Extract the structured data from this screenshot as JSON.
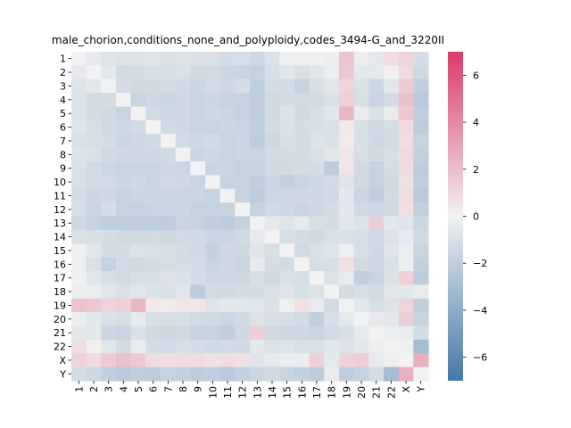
{
  "chart_data": {
    "type": "heatmap",
    "title": "male_chorion,conditions_none_and_polyploidy,codes_3494-G_and_3220II",
    "xlabel": "",
    "ylabel": "",
    "labels": [
      "1",
      "2",
      "3",
      "4",
      "5",
      "6",
      "7",
      "8",
      "9",
      "10",
      "11",
      "12",
      "13",
      "14",
      "15",
      "16",
      "17",
      "18",
      "19",
      "20",
      "21",
      "22",
      "X",
      "Y"
    ],
    "vmin": -7,
    "vmax": 7,
    "colorbar_ticks": [
      -6,
      -4,
      -2,
      0,
      2,
      4,
      6
    ],
    "colors": {
      "negative": "#4478a8",
      "center": "#f2f2f2",
      "positive": "#da3b6a"
    },
    "values": [
      [
        0,
        -0.5,
        -0.8,
        -0.9,
        -0.9,
        -0.8,
        -1.0,
        -0.9,
        -1.0,
        -1.0,
        -1.2,
        -1.1,
        -1.5,
        -1.0,
        -0.2,
        -0.2,
        -0.1,
        -0.3,
        1.8,
        -0.3,
        -0.6,
        0.8,
        1.2,
        -1.2
      ],
      [
        -0.5,
        0,
        -0.6,
        -1.3,
        -1.2,
        -1.1,
        -1.1,
        -1.0,
        -1.3,
        -1.3,
        -1.6,
        -1.7,
        -1.8,
        -1.1,
        -0.7,
        -1.0,
        -0.7,
        -0.3,
        1.6,
        -0.6,
        -0.6,
        0.1,
        0.9,
        -1.5
      ],
      [
        -0.8,
        -0.6,
        0,
        -1.2,
        -1.4,
        -1.4,
        -1.2,
        -1.4,
        -1.6,
        -1.3,
        -1.5,
        -1.2,
        -2.0,
        -1.2,
        -1.2,
        -1.8,
        -1.1,
        -0.7,
        1.2,
        -1.0,
        -1.6,
        -0.7,
        1.5,
        -2.0
      ],
      [
        -0.9,
        -1.3,
        -1.2,
        0,
        -1.7,
        -1.5,
        -1.6,
        -1.5,
        -1.7,
        -1.6,
        -1.8,
        -1.8,
        -2.0,
        -1.4,
        -1.2,
        -1.3,
        -1.3,
        -1.0,
        1.3,
        -1.1,
        -1.7,
        -1.3,
        1.9,
        -2.3
      ],
      [
        -0.9,
        -1.2,
        -1.4,
        -1.7,
        0,
        -1.3,
        -1.5,
        -1.5,
        -1.7,
        -1.5,
        -1.6,
        -1.8,
        -2.0,
        -1.4,
        -0.9,
        -1.4,
        -1.1,
        -0.7,
        2.3,
        -0.4,
        -1.0,
        -0.4,
        1.6,
        -2.0
      ],
      [
        -0.8,
        -1.1,
        -1.4,
        -1.5,
        -1.3,
        0,
        -1.4,
        -1.5,
        -1.7,
        -1.7,
        -1.6,
        -1.7,
        -2.0,
        -1.3,
        -1.0,
        -1.2,
        -1.1,
        -1.0,
        0.4,
        -1.1,
        -1.4,
        -1.2,
        0.9,
        -2.1
      ],
      [
        -1.0,
        -1.1,
        -1.2,
        -1.6,
        -1.5,
        -1.4,
        0,
        -1.3,
        -1.5,
        -1.4,
        -1.7,
        -1.6,
        -2.1,
        -1.5,
        -1.1,
        -1.2,
        -0.9,
        -1.0,
        0.3,
        -1.1,
        -1.5,
        -1.2,
        0.8,
        -1.8
      ],
      [
        -0.9,
        -1.0,
        -1.4,
        -1.5,
        -1.5,
        -1.5,
        -1.3,
        0,
        -1.6,
        -1.5,
        -1.7,
        -1.6,
        -1.7,
        -1.3,
        -1.2,
        -1.2,
        -1.0,
        -0.7,
        0.5,
        -1.1,
        -1.4,
        -1.1,
        0.9,
        -1.9
      ],
      [
        -1.0,
        -1.3,
        -1.6,
        -1.7,
        -1.7,
        -1.7,
        -1.5,
        -1.6,
        0,
        -1.7,
        -1.6,
        -1.8,
        -1.8,
        -1.4,
        -1.4,
        -1.2,
        -1.2,
        -2.1,
        0.5,
        -1.3,
        -1.8,
        -1.2,
        0.9,
        -2.1
      ],
      [
        -1.0,
        -1.3,
        -1.3,
        -1.6,
        -1.5,
        -1.7,
        -1.4,
        -1.5,
        -1.7,
        0,
        -1.8,
        -1.8,
        -2.0,
        -1.6,
        -1.9,
        -1.7,
        -1.5,
        -1.3,
        -0.8,
        -1.4,
        -1.8,
        -1.4,
        0.7,
        -2.0
      ],
      [
        -1.2,
        -1.6,
        -1.5,
        -1.8,
        -1.6,
        -1.6,
        -1.7,
        -1.7,
        -1.6,
        -1.8,
        0,
        -1.8,
        -2.1,
        -1.6,
        -1.5,
        -1.5,
        -1.5,
        -1.4,
        -0.6,
        -1.6,
        -2.0,
        -1.3,
        0.8,
        -2.3
      ],
      [
        -1.1,
        -1.7,
        -1.2,
        -1.8,
        -1.8,
        -1.7,
        -1.6,
        -1.6,
        -1.8,
        -1.8,
        -1.8,
        0,
        -1.8,
        -1.4,
        -1.5,
        -1.7,
        -1.5,
        -1.2,
        -0.6,
        -1.4,
        -1.5,
        -1.4,
        0.7,
        -1.9
      ],
      [
        -1.5,
        -1.8,
        -2.0,
        -2.0,
        -2.0,
        -2.0,
        -2.1,
        -1.7,
        -1.8,
        -2.0,
        -2.1,
        -1.8,
        0,
        -0.5,
        -0.8,
        -0.5,
        -1.1,
        -1.2,
        -0.7,
        -0.9,
        1.4,
        -0.6,
        -0.8,
        -1.6
      ],
      [
        -1.0,
        -1.1,
        -1.2,
        -1.4,
        -1.4,
        -1.3,
        -1.5,
        -1.3,
        -1.4,
        -1.6,
        -1.6,
        -1.4,
        -0.5,
        0,
        -1.1,
        -1.2,
        -1.4,
        -1.0,
        -1.0,
        -1.1,
        -1.4,
        -0.9,
        -0.5,
        -1.4
      ],
      [
        -0.2,
        -0.7,
        -1.2,
        -1.2,
        -0.9,
        -1.0,
        -1.1,
        -1.2,
        -1.4,
        -1.9,
        -1.5,
        -1.5,
        -0.8,
        -1.1,
        0,
        -1.3,
        -1.0,
        -0.8,
        -0.2,
        -1.1,
        -1.5,
        -0.8,
        -0.3,
        -1.7
      ],
      [
        -0.2,
        -1.0,
        -1.8,
        -1.3,
        -1.4,
        -1.2,
        -1.2,
        -1.2,
        -1.2,
        -1.7,
        -1.5,
        -1.7,
        -0.5,
        -1.2,
        -1.3,
        0,
        -1.1,
        -1.1,
        0.7,
        -1.3,
        -1.5,
        -1.0,
        -0.3,
        -1.9
      ],
      [
        -0.1,
        -0.7,
        -1.1,
        -1.3,
        -1.1,
        -1.1,
        -0.9,
        -1.0,
        -1.2,
        -1.5,
        -1.5,
        -1.5,
        -1.1,
        -1.4,
        -1.0,
        -1.1,
        0,
        -0.9,
        -0.4,
        -2.0,
        -1.7,
        -1.0,
        1.3,
        -2.1
      ],
      [
        -0.3,
        -0.3,
        -0.7,
        -1.0,
        -0.7,
        -1.0,
        -1.0,
        -0.7,
        -2.1,
        -1.3,
        -1.4,
        -1.2,
        -1.2,
        -1.0,
        -0.8,
        -1.1,
        -0.9,
        0,
        -1.3,
        -1.1,
        -1.3,
        -0.7,
        -0.6,
        -0.4
      ],
      [
        1.8,
        1.6,
        1.2,
        1.3,
        2.3,
        0.4,
        0.3,
        0.5,
        0.5,
        -0.8,
        -0.6,
        -0.6,
        -0.7,
        -1.0,
        -0.2,
        0.7,
        -0.4,
        -1.3,
        0,
        -0.6,
        -1.1,
        -0.9,
        1.2,
        -2.0
      ],
      [
        -0.3,
        -0.6,
        -1.0,
        -1.1,
        -0.4,
        -1.1,
        -1.1,
        -1.1,
        -1.3,
        -1.4,
        -1.6,
        -1.4,
        -0.9,
        -1.1,
        -1.1,
        -1.3,
        -2.0,
        -1.1,
        -0.6,
        0,
        -0.5,
        -0.6,
        1.4,
        -1.8
      ],
      [
        -0.6,
        -0.6,
        -1.6,
        -1.7,
        -1.0,
        -1.4,
        -1.5,
        -1.4,
        -1.8,
        -1.8,
        -2.0,
        -1.5,
        1.4,
        -1.4,
        -1.5,
        -1.5,
        -1.7,
        -1.3,
        -1.1,
        -0.5,
        0,
        -0.3,
        -0.4,
        -1.2
      ],
      [
        0.8,
        0.1,
        -0.7,
        -1.3,
        -0.4,
        -1.2,
        -1.2,
        -1.1,
        -1.2,
        -1.4,
        -1.3,
        -1.4,
        -0.6,
        -0.9,
        -0.8,
        -1.0,
        -1.0,
        -0.7,
        -0.9,
        -0.6,
        -0.3,
        0,
        -0.2,
        -3.1
      ],
      [
        1.2,
        0.9,
        1.5,
        1.9,
        1.6,
        0.9,
        0.8,
        0.9,
        0.9,
        0.7,
        0.8,
        0.7,
        -0.8,
        -0.5,
        -0.3,
        -0.3,
        1.3,
        -0.6,
        1.2,
        1.4,
        -0.4,
        -0.2,
        0,
        2.6
      ],
      [
        -1.2,
        -1.5,
        -2.0,
        -2.3,
        -2.0,
        -2.1,
        -1.8,
        -1.9,
        -2.1,
        -2.0,
        -2.3,
        -1.9,
        -1.6,
        -1.4,
        -1.7,
        -1.9,
        -2.1,
        -0.4,
        -2.0,
        -1.8,
        -1.2,
        -3.1,
        2.6,
        0
      ]
    ]
  }
}
